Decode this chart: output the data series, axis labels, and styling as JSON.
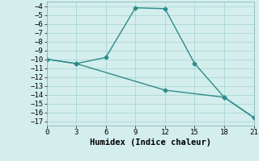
{
  "line1_x": [
    0,
    3,
    6,
    9,
    12,
    15,
    18,
    21
  ],
  "line1_y": [
    -10,
    -10.5,
    -9.8,
    -4.2,
    -4.3,
    -10.5,
    -14.3,
    -16.6
  ],
  "line2_x": [
    0,
    3,
    12,
    18,
    21
  ],
  "line2_y": [
    -10,
    -10.5,
    -13.5,
    -14.3,
    -16.6
  ],
  "color": "#2e8b8b",
  "bg_color": "#d4eeed",
  "xlabel": "Humidex (Indice chaleur)",
  "ylim": [
    -17.5,
    -3.5
  ],
  "xlim": [
    0,
    21
  ],
  "xticks": [
    0,
    3,
    6,
    9,
    12,
    15,
    18,
    21
  ],
  "yticks": [
    -4,
    -5,
    -6,
    -7,
    -8,
    -9,
    -10,
    -11,
    -12,
    -13,
    -14,
    -15,
    -16,
    -17
  ],
  "grid_color": "#a8d8d4",
  "marker": "D",
  "markersize": 2.5,
  "linewidth": 1.0,
  "tick_fontsize": 6.5,
  "xlabel_fontsize": 7.5
}
